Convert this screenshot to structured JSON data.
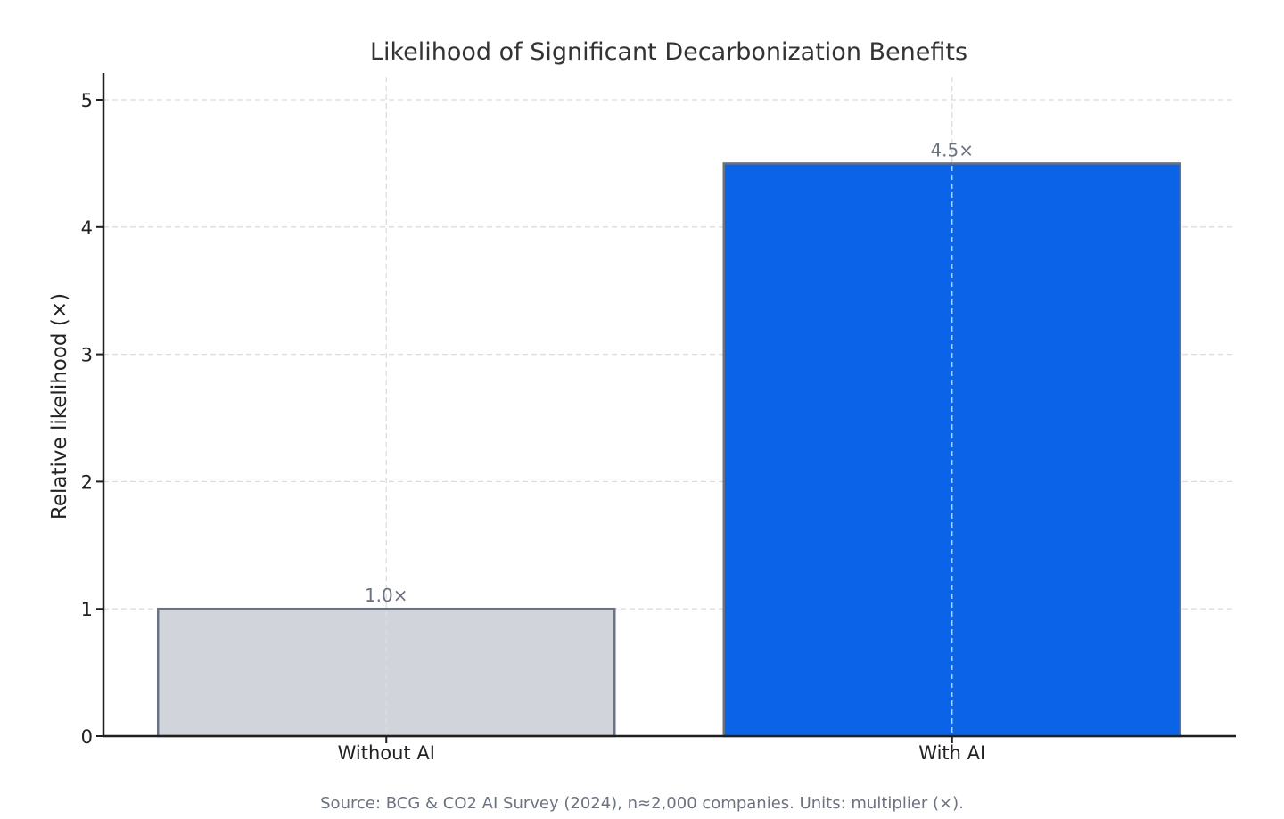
{
  "chart_data": {
    "type": "bar",
    "title": "Likelihood of Significant Decarbonization Benefits",
    "xlabel": "",
    "ylabel": "Relative likelihood (×)",
    "categories": [
      "Without AI",
      "With AI"
    ],
    "values": [
      1.0,
      4.5
    ],
    "data_labels": [
      "1.0×",
      "4.5×"
    ],
    "bar_colors": [
      "#d1d5db",
      "#0b63e8"
    ],
    "bar_edge_color": "#6b7280",
    "ylim": [
      0,
      5.2
    ],
    "yticks": [
      0,
      1,
      2,
      3,
      4,
      5
    ],
    "grid": true,
    "source": "Source: BCG & CO2 AI Survey (2024), n≈2,000 companies. Units: multiplier (×)."
  }
}
